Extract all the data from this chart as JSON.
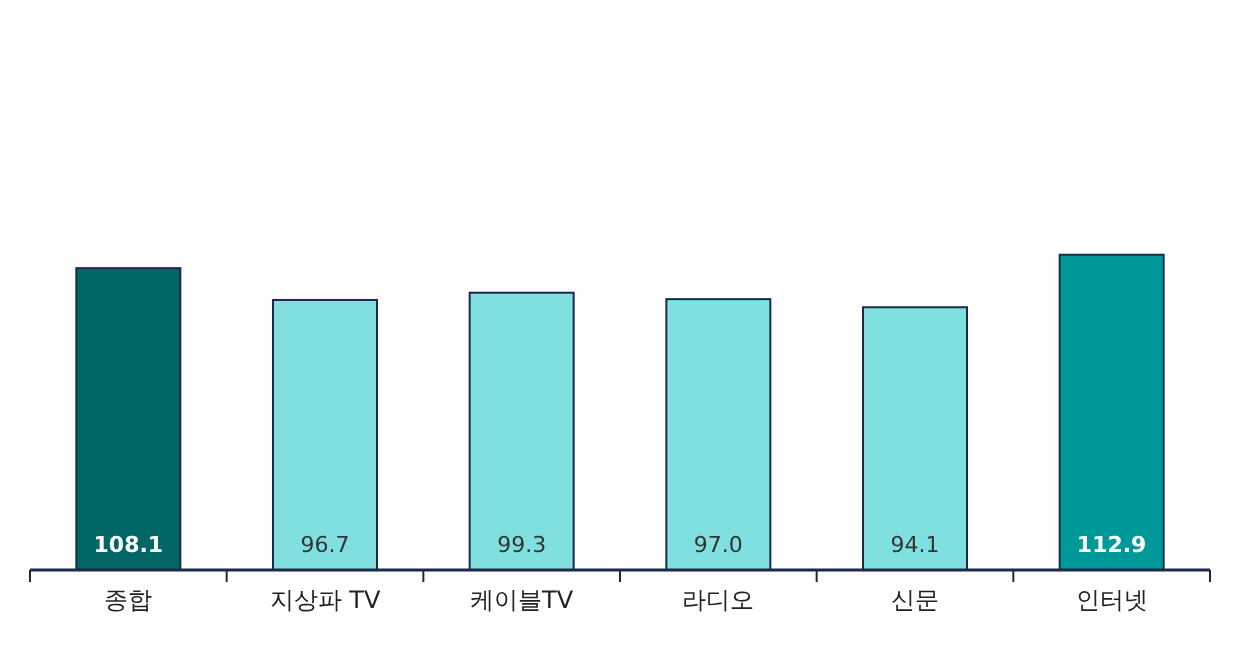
{
  "chart_data": {
    "type": "bar",
    "categories": [
      "종합",
      "지상파 TV",
      "케이블TV",
      "라디오",
      "신문",
      "인터넷"
    ],
    "values": [
      108.1,
      96.7,
      99.3,
      97.0,
      94.1,
      112.9
    ],
    "value_labels": [
      "108.1",
      "96.7",
      "99.3",
      "97.0",
      "94.1",
      "112.9"
    ],
    "colors": [
      "#006666",
      "#80e0e0",
      "#80e0e0",
      "#80e0e0",
      "#80e0e0",
      "#009999"
    ]
  }
}
